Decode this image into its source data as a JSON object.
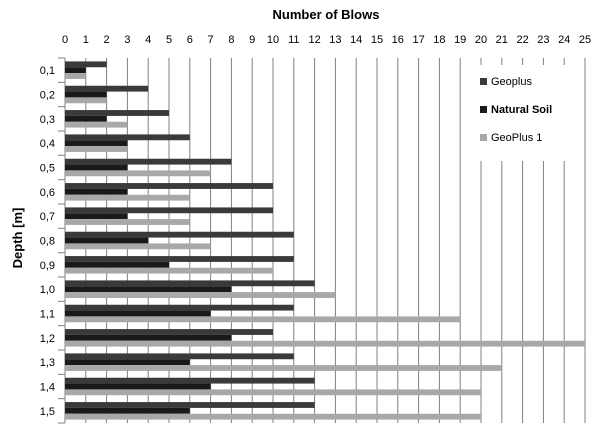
{
  "chart_data": {
    "type": "bar",
    "orientation": "horizontal",
    "title": "Number of Blows",
    "xlabel": "Number of Blows",
    "ylabel": "Depth [m]",
    "xlim": [
      0,
      25
    ],
    "x_ticks": [
      "0",
      "1",
      "2",
      "3",
      "4",
      "5",
      "6",
      "7",
      "8",
      "9",
      "10",
      "11",
      "12",
      "13",
      "14",
      "15",
      "16",
      "17",
      "18",
      "19",
      "20",
      "21",
      "22",
      "23",
      "24",
      "25"
    ],
    "x_axis_position": "top",
    "grid": true,
    "legend_position": "right",
    "categories": [
      "0,1",
      "0,2",
      "0,3",
      "0,4",
      "0,5",
      "0,6",
      "0,7",
      "0,8",
      "0,9",
      "1,0",
      "1,1",
      "1,2",
      "1,3",
      "1,4",
      "1,5"
    ],
    "series": [
      {
        "name": "Geoplus",
        "color": "#3a3a3a",
        "bold": false,
        "values": [
          2,
          4,
          5,
          6,
          8,
          10,
          10,
          11,
          11,
          12,
          11,
          10,
          11,
          12,
          12
        ]
      },
      {
        "name": "Natural Soil",
        "color": "#1a1a1a",
        "bold": true,
        "values": [
          1,
          2,
          2,
          3,
          3,
          3,
          3,
          4,
          5,
          8,
          7,
          8,
          6,
          7,
          6
        ]
      },
      {
        "name": "GeoPlus 1",
        "color": "#a8a8a8",
        "bold": false,
        "values": [
          1,
          2,
          3,
          3,
          7,
          6,
          6,
          7,
          10,
          13,
          19,
          25,
          21,
          20,
          20
        ]
      }
    ]
  }
}
